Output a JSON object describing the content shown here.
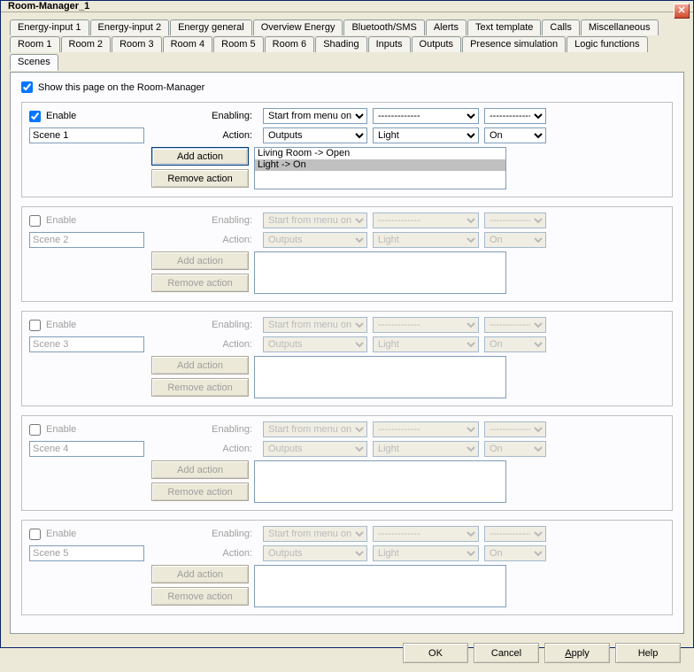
{
  "window": {
    "title": "Room-Manager_1"
  },
  "tabs_row1": [
    "Energy-input 1",
    "Energy-input 2",
    "Energy general",
    "Overview Energy",
    "Bluetooth/SMS",
    "Alerts",
    "Text template",
    "Calls",
    "Miscellaneous"
  ],
  "tabs_row2": [
    "Room 1",
    "Room 2",
    "Room 3",
    "Room 4",
    "Room 5",
    "Room 6",
    "Shading",
    "Inputs",
    "Outputs",
    "Presence simulation",
    "Logic functions",
    "Scenes"
  ],
  "active_tab": "Scenes",
  "show_on_rm": {
    "label": "Show this page on the Room-Manager",
    "checked": true
  },
  "labels": {
    "enable": "Enable",
    "enabling": "Enabling:",
    "action": "Action:",
    "add_action": "Add action",
    "remove_action": "Remove action"
  },
  "combo_defaults": {
    "enabling1": "Start from menu on",
    "enabling2": "-------------",
    "enabling3": "-------------",
    "action1": "Outputs",
    "action2": "Light",
    "action3": "On"
  },
  "scenes": [
    {
      "enabled": true,
      "name": "Scene 1",
      "list": [
        {
          "text": "Living Room -> Open",
          "selected": false
        },
        {
          "text": "Light -> On",
          "selected": true
        }
      ]
    },
    {
      "enabled": false,
      "name": "Scene 2",
      "list": []
    },
    {
      "enabled": false,
      "name": "Scene 3",
      "list": []
    },
    {
      "enabled": false,
      "name": "Scene 4",
      "list": []
    },
    {
      "enabled": false,
      "name": "Scene 5",
      "list": []
    }
  ],
  "footer": {
    "ok": "OK",
    "cancel": "Cancel",
    "apply": "Apply",
    "help": "Help"
  },
  "colors": {
    "window_bg": "#ece9d8",
    "panel_bg": "#fcfcfe",
    "border": "#919b9c",
    "input_border": "#7f9db9",
    "disabled_text": "#9e9e9e",
    "close_btn": "#d04a2c"
  }
}
